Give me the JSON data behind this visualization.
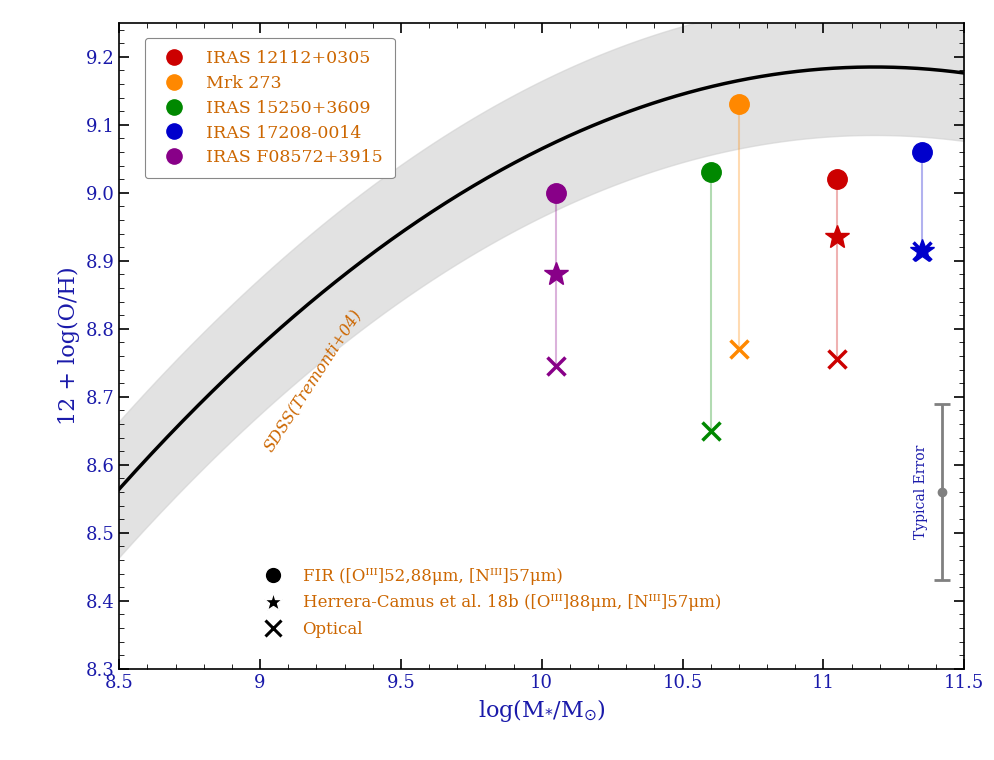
{
  "title": "",
  "xlabel": "log(M∗/M☉)",
  "ylabel": "12 + log(O/H)",
  "xlim": [
    8.5,
    11.5
  ],
  "ylim": [
    8.3,
    9.25
  ],
  "xticks": [
    8.5,
    9.0,
    9.5,
    10.0,
    10.5,
    11.0,
    11.5
  ],
  "yticks": [
    8.3,
    8.4,
    8.5,
    8.6,
    8.7,
    8.8,
    8.9,
    9.0,
    9.1,
    9.2
  ],
  "tremonti_label": "SDSS(Tremonti+04)",
  "tremonti_label_color": "#cc6600",
  "axis_label_color": "#1a1aaa",
  "tick_label_color": "#1a1aaa",
  "sources": [
    {
      "name": "IRAS 12112+0305",
      "color": "#cc0000",
      "circle": [
        11.05,
        9.02
      ],
      "star": [
        11.05,
        8.935
      ],
      "cross": [
        11.05,
        8.755
      ]
    },
    {
      "name": "Mrk 273",
      "color": "#ff8800",
      "circle": [
        10.7,
        9.13
      ],
      "star": null,
      "cross": [
        10.7,
        8.77
      ]
    },
    {
      "name": "IRAS 15250+3609",
      "color": "#008800",
      "circle": [
        10.6,
        9.03
      ],
      "star": null,
      "cross": [
        10.6,
        8.65
      ]
    },
    {
      "name": "IRAS 17208-0014",
      "color": "#0000cc",
      "circle": [
        11.35,
        9.06
      ],
      "star": [
        11.35,
        8.915
      ],
      "cross": [
        11.35,
        8.915
      ]
    },
    {
      "name": "IRAS F08572+3915",
      "color": "#880088",
      "circle": [
        10.05,
        9.0
      ],
      "star": [
        10.05,
        8.88
      ],
      "cross": [
        10.05,
        8.745
      ]
    }
  ],
  "typical_error_x": 11.42,
  "typical_error_y": 8.56,
  "typical_error_half": 0.13,
  "background_color": "white",
  "tremonti_color": "black",
  "shade_color": "#d0d0d0",
  "legend1_label_color": "#cc6600",
  "legend2_label_color": "#cc6600"
}
